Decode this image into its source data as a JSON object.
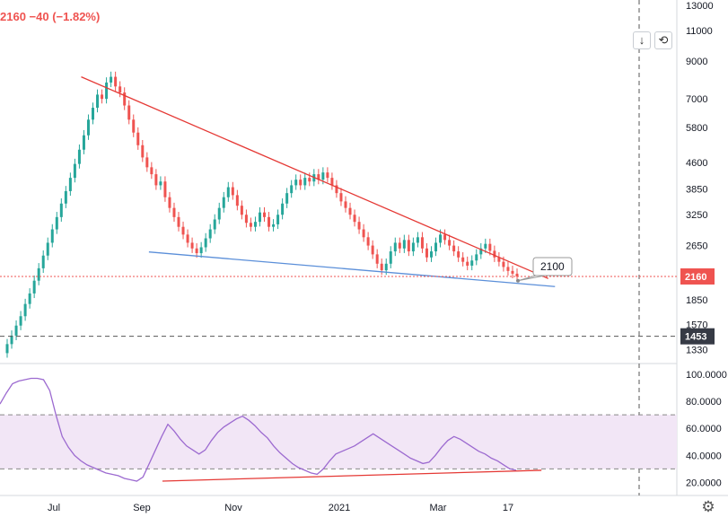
{
  "header": {
    "price_change_text": "2160 −40 (−1.82%)",
    "color": "#ef5350"
  },
  "toolbar": {
    "scroll_down_glyph": "↓",
    "reset_glyph": "⟲"
  },
  "settings": {
    "glyph": "⚙"
  },
  "colors": {
    "up": "#26a69a",
    "down": "#ef5350",
    "trendline_upper": "#e53935",
    "trendline_lower": "#5b8fd9",
    "rsi_line": "#9c6ad0",
    "rsi_band_fill": "#f2e6f6",
    "last_price_badge": "#ef5350",
    "crosshair_badge": "#363a45"
  },
  "chart_data": [
    {
      "type": "candlestick",
      "title": "",
      "scale": "log",
      "ylim": [
        1250,
        13000
      ],
      "y_tick_labels": [
        "13000",
        "11000",
        "9000",
        "7000",
        "5800",
        "4600",
        "3850",
        "3250",
        "2650",
        "2150",
        "1850",
        "1570",
        "1330"
      ],
      "x_tick_labels": [
        "Jul",
        "Sep",
        "Nov",
        "2021",
        "Mar",
        "17"
      ],
      "last_price": {
        "value": 2160,
        "label": "2160"
      },
      "crosshair_price": {
        "value": 1453,
        "label": "1453"
      },
      "annotation": {
        "text": "2100",
        "value": 2100
      },
      "trendlines": [
        {
          "name": "",
          "from": [
            0.12,
            8100
          ],
          "to": [
            0.81,
            2130
          ]
        },
        {
          "name": "",
          "from": [
            0.22,
            2540
          ],
          "to": [
            0.82,
            2020
          ]
        }
      ],
      "candles": [
        {
          "o": 1300,
          "c": 1380
        },
        {
          "o": 1380,
          "c": 1460
        },
        {
          "o": 1460,
          "c": 1560
        },
        {
          "o": 1560,
          "c": 1660
        },
        {
          "o": 1660,
          "c": 1800
        },
        {
          "o": 1800,
          "c": 1930
        },
        {
          "o": 1930,
          "c": 2100
        },
        {
          "o": 2100,
          "c": 2280
        },
        {
          "o": 2280,
          "c": 2480
        },
        {
          "o": 2480,
          "c": 2700
        },
        {
          "o": 2700,
          "c": 2950
        },
        {
          "o": 2950,
          "c": 3200
        },
        {
          "o": 3200,
          "c": 3500
        },
        {
          "o": 3500,
          "c": 3800
        },
        {
          "o": 3800,
          "c": 4150
        },
        {
          "o": 4150,
          "c": 4550
        },
        {
          "o": 4550,
          "c": 5000
        },
        {
          "o": 5000,
          "c": 5500
        },
        {
          "o": 5500,
          "c": 6100
        },
        {
          "o": 6100,
          "c": 6600
        },
        {
          "o": 6600,
          "c": 7200
        },
        {
          "o": 7200,
          "c": 7000
        },
        {
          "o": 7000,
          "c": 7800
        },
        {
          "o": 7800,
          "c": 8100
        },
        {
          "o": 8100,
          "c": 7600
        },
        {
          "o": 7600,
          "c": 7300
        },
        {
          "o": 7300,
          "c": 6700
        },
        {
          "o": 6700,
          "c": 6100
        },
        {
          "o": 6100,
          "c": 5600
        },
        {
          "o": 5600,
          "c": 5150
        },
        {
          "o": 5150,
          "c": 4750
        },
        {
          "o": 4750,
          "c": 4450
        },
        {
          "o": 4450,
          "c": 4250
        },
        {
          "o": 4250,
          "c": 3950
        },
        {
          "o": 3950,
          "c": 4050
        },
        {
          "o": 4050,
          "c": 3650
        },
        {
          "o": 3650,
          "c": 3400
        },
        {
          "o": 3400,
          "c": 3200
        },
        {
          "o": 3200,
          "c": 3000
        },
        {
          "o": 3000,
          "c": 2850
        },
        {
          "o": 2850,
          "c": 2700
        },
        {
          "o": 2700,
          "c": 2600
        },
        {
          "o": 2600,
          "c": 2520
        },
        {
          "o": 2520,
          "c": 2620
        },
        {
          "o": 2620,
          "c": 2780
        },
        {
          "o": 2780,
          "c": 2950
        },
        {
          "o": 2950,
          "c": 3150
        },
        {
          "o": 3150,
          "c": 3400
        },
        {
          "o": 3400,
          "c": 3650
        },
        {
          "o": 3650,
          "c": 3900
        },
        {
          "o": 3900,
          "c": 3700
        },
        {
          "o": 3700,
          "c": 3450
        },
        {
          "o": 3450,
          "c": 3250
        },
        {
          "o": 3250,
          "c": 3080
        },
        {
          "o": 3080,
          "c": 3000
        },
        {
          "o": 3000,
          "c": 3100
        },
        {
          "o": 3100,
          "c": 3300
        },
        {
          "o": 3300,
          "c": 3200
        },
        {
          "o": 3200,
          "c": 3000
        },
        {
          "o": 3000,
          "c": 3050
        },
        {
          "o": 3050,
          "c": 3250
        },
        {
          "o": 3250,
          "c": 3500
        },
        {
          "o": 3500,
          "c": 3750
        },
        {
          "o": 3750,
          "c": 3950
        },
        {
          "o": 3950,
          "c": 4100
        },
        {
          "o": 4100,
          "c": 3950
        },
        {
          "o": 3950,
          "c": 4150
        },
        {
          "o": 4150,
          "c": 4050
        },
        {
          "o": 4050,
          "c": 4250
        },
        {
          "o": 4250,
          "c": 4100
        },
        {
          "o": 4100,
          "c": 4300
        },
        {
          "o": 4300,
          "c": 4150
        },
        {
          "o": 4150,
          "c": 3950
        },
        {
          "o": 3950,
          "c": 3750
        },
        {
          "o": 3750,
          "c": 3550
        },
        {
          "o": 3550,
          "c": 3400
        },
        {
          "o": 3400,
          "c": 3250
        },
        {
          "o": 3250,
          "c": 3100
        },
        {
          "o": 3100,
          "c": 2950
        },
        {
          "o": 2950,
          "c": 2800
        },
        {
          "o": 2800,
          "c": 2650
        },
        {
          "o": 2650,
          "c": 2500
        },
        {
          "o": 2500,
          "c": 2350
        },
        {
          "o": 2350,
          "c": 2250
        },
        {
          "o": 2250,
          "c": 2350
        },
        {
          "o": 2350,
          "c": 2550
        },
        {
          "o": 2550,
          "c": 2700
        },
        {
          "o": 2700,
          "c": 2600
        },
        {
          "o": 2600,
          "c": 2750
        },
        {
          "o": 2750,
          "c": 2550
        },
        {
          "o": 2550,
          "c": 2700
        },
        {
          "o": 2700,
          "c": 2800
        },
        {
          "o": 2800,
          "c": 2600
        },
        {
          "o": 2600,
          "c": 2450
        },
        {
          "o": 2450,
          "c": 2550
        },
        {
          "o": 2550,
          "c": 2700
        },
        {
          "o": 2700,
          "c": 2850
        },
        {
          "o": 2850,
          "c": 2750
        },
        {
          "o": 2750,
          "c": 2650
        },
        {
          "o": 2650,
          "c": 2550
        },
        {
          "o": 2550,
          "c": 2450
        },
        {
          "o": 2450,
          "c": 2380
        },
        {
          "o": 2380,
          "c": 2320
        },
        {
          "o": 2320,
          "c": 2400
        },
        {
          "o": 2400,
          "c": 2500
        },
        {
          "o": 2500,
          "c": 2600
        },
        {
          "o": 2600,
          "c": 2680
        },
        {
          "o": 2680,
          "c": 2560
        },
        {
          "o": 2560,
          "c": 2450
        },
        {
          "o": 2450,
          "c": 2380
        },
        {
          "o": 2380,
          "c": 2300
        },
        {
          "o": 2300,
          "c": 2240
        },
        {
          "o": 2240,
          "c": 2200
        },
        {
          "o": 2200,
          "c": 2160
        }
      ]
    },
    {
      "type": "line",
      "title": "",
      "ylim": [
        15,
        100
      ],
      "y_tick_labels": [
        "100.0000",
        "80.0000",
        "60.0000",
        "40.0000",
        "20.0000"
      ],
      "band": [
        30,
        70
      ],
      "trendline": {
        "from": [
          0.24,
          21
        ],
        "to": [
          0.8,
          29
        ]
      },
      "values": [
        78,
        86,
        93,
        95,
        96,
        97,
        97,
        96,
        88,
        70,
        54,
        46,
        40,
        36,
        33,
        31,
        29,
        27,
        26,
        25,
        23,
        22,
        21,
        24,
        34,
        44,
        54,
        63,
        58,
        52,
        47,
        44,
        41,
        44,
        51,
        57,
        61,
        64,
        67,
        69,
        66,
        62,
        57,
        53,
        47,
        42,
        38,
        34,
        31,
        29,
        27,
        26,
        30,
        36,
        41,
        43,
        45,
        47,
        50,
        53,
        56,
        53,
        50,
        47,
        44,
        41,
        38,
        36,
        34,
        35,
        40,
        46,
        51,
        54,
        52,
        49,
        46,
        43,
        41,
        38,
        36,
        33,
        30,
        29
      ]
    }
  ]
}
